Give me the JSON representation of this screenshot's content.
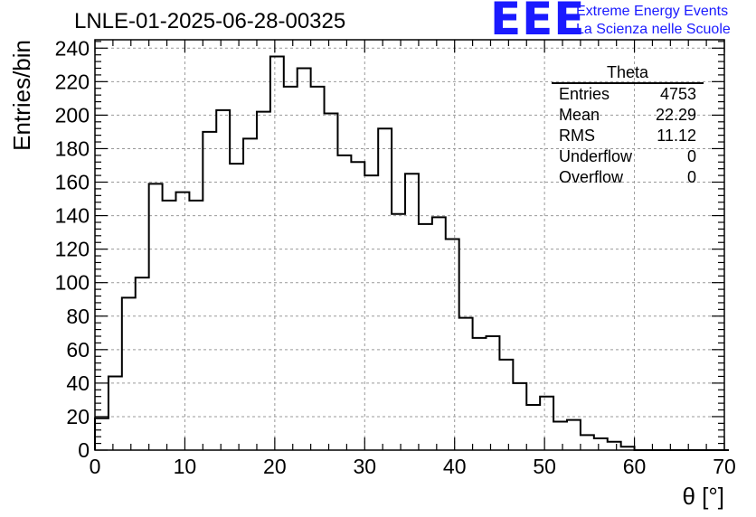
{
  "title": "LNLE-01-2025-06-28-00325",
  "logo": {
    "mark": "EEE",
    "line1": "Extreme Energy Events",
    "line2": "La Scienza nelle Scuole"
  },
  "stats": {
    "title": "Theta",
    "rows": [
      {
        "label": "Entries",
        "value": "4753"
      },
      {
        "label": "Mean",
        "value": "22.29"
      },
      {
        "label": "RMS",
        "value": "11.12"
      },
      {
        "label": "Underflow",
        "value": "0"
      },
      {
        "label": "Overflow",
        "value": "0"
      }
    ]
  },
  "chart_data": {
    "type": "bar",
    "style": "step-histogram",
    "xlabel": "θ [°]",
    "ylabel": "Entries/bin",
    "xlim": [
      0,
      70
    ],
    "ylim": [
      0,
      245
    ],
    "xticks": [
      0,
      10,
      20,
      30,
      40,
      50,
      60,
      70
    ],
    "yticks": [
      0,
      20,
      40,
      60,
      80,
      100,
      120,
      140,
      160,
      180,
      200,
      220,
      240
    ],
    "grid": true,
    "bin_width": 1.5,
    "bin_start": 0,
    "values": [
      19,
      44,
      91,
      103,
      159,
      149,
      154,
      149,
      190,
      203,
      171,
      186,
      202,
      235,
      217,
      228,
      217,
      201,
      176,
      172,
      164,
      192,
      141,
      165,
      135,
      139,
      126,
      79,
      67,
      68,
      54,
      40,
      27,
      32,
      17,
      18,
      9,
      7,
      5,
      2,
      0,
      0,
      0,
      0,
      0,
      0,
      0
    ]
  }
}
